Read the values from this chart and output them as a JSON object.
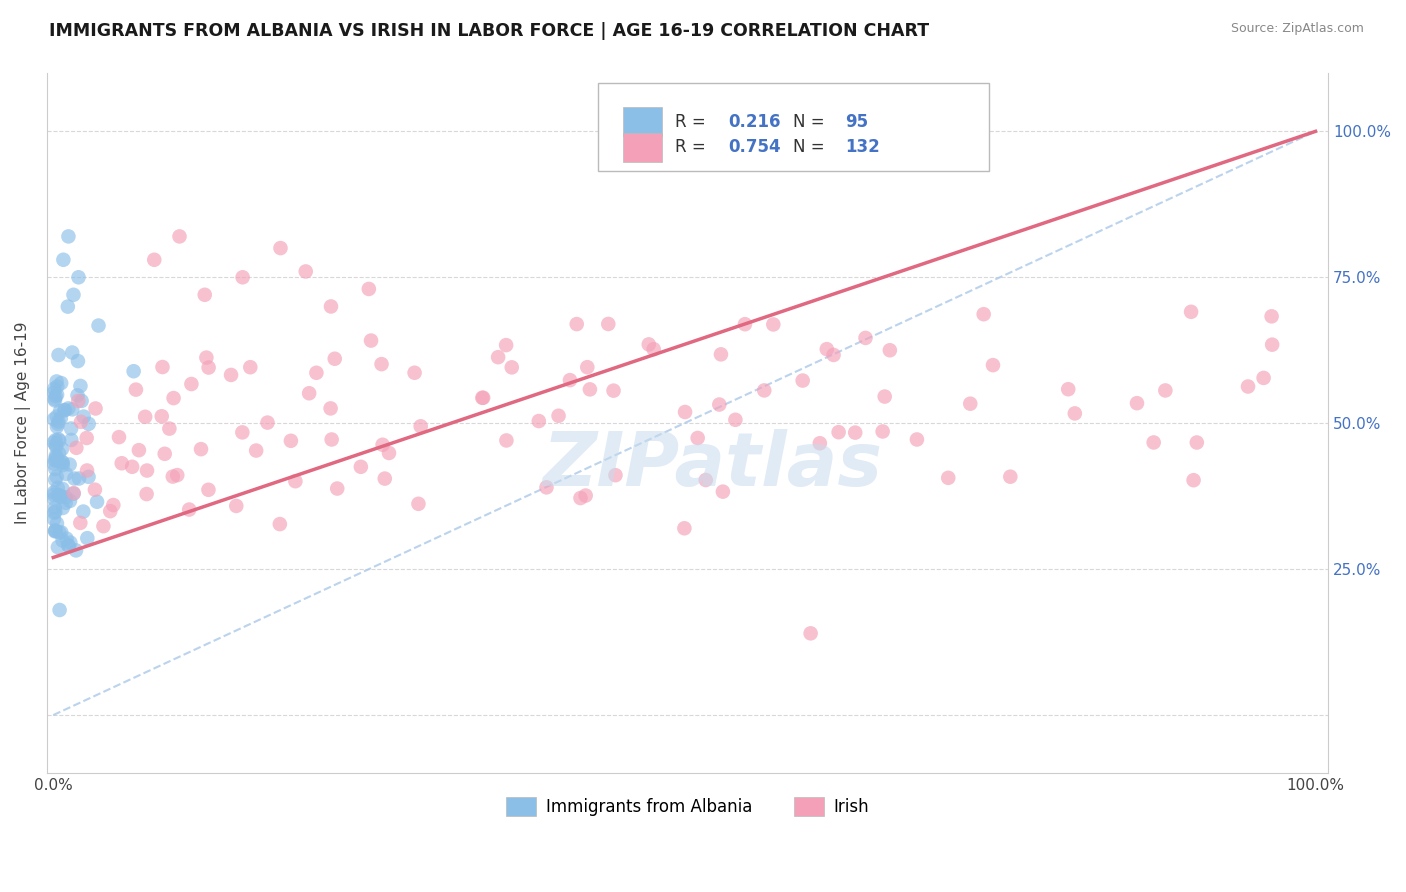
{
  "title": "IMMIGRANTS FROM ALBANIA VS IRISH IN LABOR FORCE | AGE 16-19 CORRELATION CHART",
  "source": "Source: ZipAtlas.com",
  "ylabel": "In Labor Force | Age 16-19",
  "r_albania": 0.216,
  "n_albania": 95,
  "r_irish": 0.754,
  "n_irish": 132,
  "albania_color": "#8bbfe8",
  "irish_color": "#f4a0b8",
  "trend_albania_color": "#aac8e8",
  "trend_irish_color": "#e06880",
  "watermark": "ZIPatlas",
  "watermark_color_r": 0.78,
  "watermark_color_g": 0.86,
  "watermark_color_b": 0.93,
  "legend_label_albania": "Immigrants from Albania",
  "legend_label_irish": "Irish",
  "right_ytick_labels": [
    "25.0%",
    "50.0%",
    "75.0%",
    "100.0%"
  ],
  "right_ytick_values": [
    0.25,
    0.5,
    0.75,
    1.0
  ],
  "xtick_labels": [
    "0.0%",
    "100.0%"
  ],
  "blue_text_color": "#4472C4",
  "title_color": "#1a1a1a",
  "source_color": "#888888",
  "grid_color": "#d8d8d8"
}
